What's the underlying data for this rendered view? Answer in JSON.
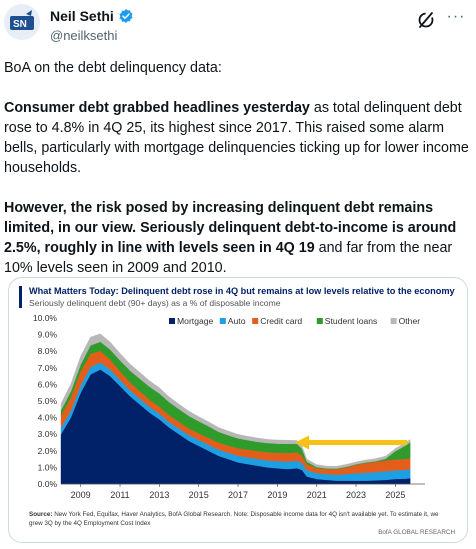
{
  "author": {
    "display_name": "Neil Sethi",
    "handle": "@neilksethi",
    "verified_icon": "verified-badge-icon",
    "avatar_icon": "sn-logo-avatar-icon"
  },
  "actions": {
    "grok_icon": "grok-icon",
    "more_label": "···"
  },
  "tweet": {
    "line1": "BoA on the debt delinquency data:",
    "p2_bold": "Consumer debt grabbed headlines yesterday",
    "p2_rest": " as total delinquent debt rose to 4.8% in 4Q 25, its highest since 2017. This raised some alarm bells, particularly with mortgage delinquencies ticking up for lower income households.",
    "p3_bold": "However, the risk posed by increasing delinquent debt remains limited, in our view. Seriously delinquent debt-to-income is around 2.5%, roughly in line with levels seen in 4Q 19",
    "p3_rest": " and far from the near 10% levels seen in 2009 and 2010."
  },
  "chart_data": {
    "type": "area",
    "stacked": true,
    "title": "What Matters Today: Delinquent debt rose in 4Q but remains at low levels relative to the economy",
    "subtitle": "Seriously delinquent debt (90+ days) as a % of disposable income",
    "ylim": [
      0,
      10
    ],
    "yticks": [
      "0.0%",
      "1.0%",
      "2.0%",
      "3.0%",
      "4.0%",
      "5.0%",
      "6.0%",
      "7.0%",
      "8.0%",
      "9.0%",
      "10.0%"
    ],
    "xticks": [
      "2009",
      "2011",
      "2013",
      "2015",
      "2017",
      "2019",
      "2021",
      "2023",
      "2025"
    ],
    "x": [
      2008.0,
      2008.5,
      2009.0,
      2009.5,
      2010.0,
      2010.5,
      2011.0,
      2011.5,
      2012.0,
      2012.5,
      2013.0,
      2013.5,
      2014.0,
      2014.5,
      2015.0,
      2015.5,
      2016.0,
      2016.5,
      2017.0,
      2017.5,
      2018.0,
      2018.5,
      2019.0,
      2019.5,
      2020.0,
      2020.25,
      2020.5,
      2021.0,
      2021.5,
      2022.0,
      2022.5,
      2023.0,
      2023.5,
      2024.0,
      2024.5,
      2025.0,
      2025.5,
      2025.75
    ],
    "series": [
      {
        "name": "Mortgage",
        "color": "#012169",
        "values": [
          3.0,
          4.0,
          5.5,
          6.6,
          6.9,
          6.5,
          5.9,
          5.3,
          4.8,
          4.3,
          3.9,
          3.4,
          3.0,
          2.6,
          2.3,
          2.0,
          1.7,
          1.5,
          1.3,
          1.2,
          1.1,
          1.0,
          0.95,
          0.9,
          0.95,
          0.85,
          0.45,
          0.3,
          0.25,
          0.2,
          0.2,
          0.2,
          0.2,
          0.22,
          0.25,
          0.3,
          0.32,
          0.35
        ]
      },
      {
        "name": "Auto",
        "color": "#1e9fe3",
        "values": [
          0.4,
          0.42,
          0.45,
          0.45,
          0.42,
          0.4,
          0.38,
          0.36,
          0.35,
          0.35,
          0.34,
          0.34,
          0.34,
          0.35,
          0.36,
          0.37,
          0.38,
          0.39,
          0.4,
          0.4,
          0.41,
          0.42,
          0.43,
          0.45,
          0.45,
          0.42,
          0.38,
          0.36,
          0.35,
          0.36,
          0.4,
          0.45,
          0.48,
          0.5,
          0.52,
          0.52,
          0.53,
          0.55
        ]
      },
      {
        "name": "Credit card",
        "color": "#e35d1b",
        "values": [
          0.75,
          0.8,
          0.85,
          0.8,
          0.7,
          0.6,
          0.52,
          0.48,
          0.45,
          0.43,
          0.42,
          0.41,
          0.4,
          0.4,
          0.4,
          0.41,
          0.42,
          0.43,
          0.45,
          0.47,
          0.48,
          0.5,
          0.5,
          0.52,
          0.5,
          0.45,
          0.36,
          0.3,
          0.3,
          0.33,
          0.4,
          0.5,
          0.58,
          0.62,
          0.65,
          0.66,
          0.66,
          0.66
        ]
      },
      {
        "name": "Student loans",
        "color": "#2f9b2a",
        "values": [
          0.3,
          0.35,
          0.4,
          0.5,
          0.55,
          0.6,
          0.65,
          0.7,
          0.75,
          0.78,
          0.8,
          0.78,
          0.77,
          0.75,
          0.72,
          0.7,
          0.65,
          0.62,
          0.6,
          0.57,
          0.55,
          0.55,
          0.55,
          0.55,
          0.52,
          0.4,
          0.15,
          0.06,
          0.04,
          0.04,
          0.04,
          0.04,
          0.04,
          0.04,
          0.1,
          0.5,
          0.8,
          0.95
        ]
      },
      {
        "name": "Other",
        "color": "#b7b7b7",
        "values": [
          0.4,
          0.45,
          0.5,
          0.5,
          0.48,
          0.45,
          0.42,
          0.4,
          0.38,
          0.36,
          0.34,
          0.32,
          0.3,
          0.29,
          0.28,
          0.27,
          0.26,
          0.25,
          0.24,
          0.23,
          0.23,
          0.22,
          0.22,
          0.22,
          0.2,
          0.18,
          0.16,
          0.15,
          0.14,
          0.14,
          0.14,
          0.14,
          0.15,
          0.15,
          0.16,
          0.16,
          0.17,
          0.17
        ]
      }
    ],
    "legend_position": "top-right",
    "annotation": {
      "type": "arrow",
      "color": "#f7c215",
      "from_x": 2025.6,
      "to_x": 2019.9,
      "y": 2.5
    },
    "source_label": "Source:",
    "source_text": "New York Fed, Equifax, Haver Analytics, BofA Global Research. Note: Disposable income data for 4Q isn't available yet. To estimate it, we grew 3Q by the 4Q Employment Cost Index",
    "brand": "BofA GLOBAL RESEARCH"
  }
}
